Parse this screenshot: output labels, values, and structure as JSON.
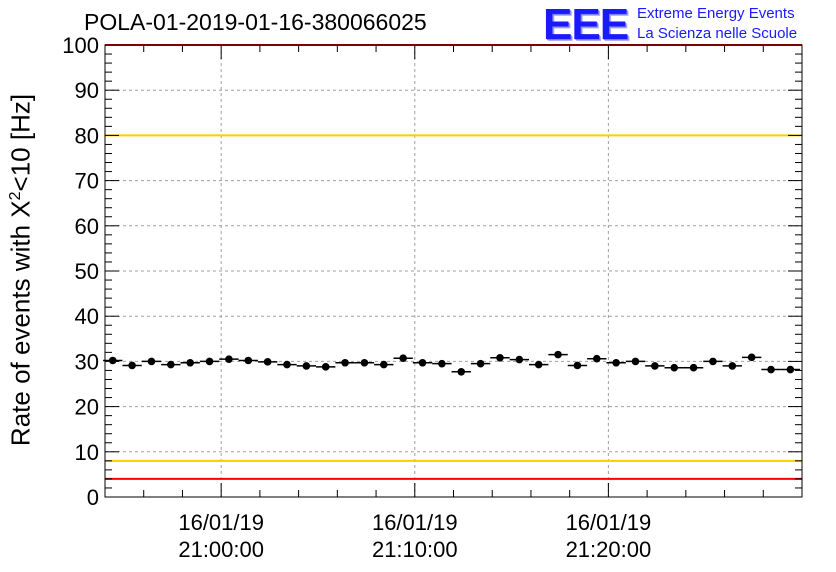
{
  "header": {
    "title": "POLA-01-2019-01-16-380066025",
    "logo_text": "EEE",
    "logo_line1": "Extreme Energy Events",
    "logo_line2": "La Scienza nelle Scuole"
  },
  "axes": {
    "ylabel_prefix": "Rate of events with X",
    "ylabel_sup": "2",
    "ylabel_suffix": "<10 [Hz]"
  },
  "colors": {
    "marker": "#000000",
    "red_line": "#ff0000",
    "yellow_line": "#ffcc00",
    "grid": "#a0a0a0",
    "logo": "#1a1aff"
  },
  "chart_data": {
    "type": "scatter",
    "title": "POLA-01-2019-01-16-380066025",
    "ylabel": "Rate of events with X^2<10 [Hz]",
    "ylim": [
      0,
      100
    ],
    "xlim_minutes": [
      54.0,
      90.0
    ],
    "grid": true,
    "yticks": [
      0,
      10,
      20,
      30,
      40,
      50,
      60,
      70,
      80,
      90,
      100
    ],
    "xticks": [
      {
        "minute": 60,
        "date": "16/01/19",
        "time": "21:00:00"
      },
      {
        "minute": 70,
        "date": "16/01/19",
        "time": "21:10:00"
      },
      {
        "minute": 80,
        "date": "16/01/19",
        "time": "21:20:00"
      }
    ],
    "reference_lines": [
      {
        "y": 100,
        "color": "red"
      },
      {
        "y": 80,
        "color": "yellow"
      },
      {
        "y": 8,
        "color": "yellow"
      },
      {
        "y": 4,
        "color": "red"
      }
    ],
    "series": [
      {
        "x_minutes": [
          54.4,
          55.4,
          56.4,
          57.4,
          58.4,
          59.4,
          60.4,
          61.4,
          62.4,
          63.4,
          64.4,
          65.4,
          66.4,
          67.4,
          68.4,
          69.4,
          70.4,
          71.4,
          72.4,
          73.4,
          74.4,
          75.4,
          76.4,
          77.4,
          78.4,
          79.4,
          80.4,
          81.4,
          82.4,
          83.4,
          84.4,
          85.4,
          86.4,
          87.4,
          88.4,
          89.4
        ],
        "values": [
          30.2,
          29.1,
          30.0,
          29.3,
          29.7,
          30.0,
          30.5,
          30.2,
          29.9,
          29.3,
          29.0,
          28.8,
          29.7,
          29.7,
          29.3,
          30.7,
          29.7,
          29.5,
          27.7,
          29.5,
          30.8,
          30.4,
          29.3,
          31.5,
          29.1,
          30.6,
          29.7,
          30.0,
          29.0,
          28.6,
          28.6,
          30.0,
          29.0,
          30.9,
          28.2,
          28.2
        ]
      }
    ]
  }
}
